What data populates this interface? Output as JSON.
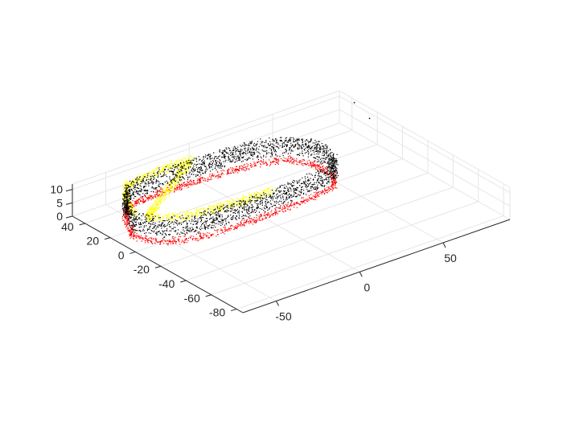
{
  "chart_data": {
    "type": "scatter3d",
    "title": "",
    "xlabel": "",
    "ylabel": "",
    "zlabel": "",
    "grid": true,
    "legend": "none",
    "xlim": [
      -70,
      90
    ],
    "ylim": [
      -85,
      50
    ],
    "zlim": [
      0,
      12
    ],
    "x_ticks": [
      {
        "value": -50,
        "label": "-50"
      },
      {
        "value": 0,
        "label": "0"
      },
      {
        "value": 50,
        "label": "50"
      }
    ],
    "y_ticks": [
      {
        "value": 40,
        "label": "40"
      },
      {
        "value": 20,
        "label": "20"
      },
      {
        "value": 0,
        "label": "0"
      },
      {
        "value": -20,
        "label": "-20"
      },
      {
        "value": -40,
        "label": "-40"
      },
      {
        "value": -60,
        "label": "-60"
      },
      {
        "value": -80,
        "label": "-80"
      }
    ],
    "z_ticks": [
      {
        "value": 0,
        "label": "0"
      },
      {
        "value": 5,
        "label": "5"
      },
      {
        "value": 10,
        "label": "10"
      }
    ],
    "series": [
      {
        "color": "#ff0000",
        "z_range": [
          0,
          2
        ],
        "description_loop_points": [
          [
            -62,
            12
          ],
          [
            -55,
            28
          ],
          [
            -45,
            40
          ],
          [
            -20,
            42
          ],
          [
            10,
            40
          ],
          [
            30,
            38
          ],
          [
            45,
            32
          ],
          [
            52,
            20
          ],
          [
            52,
            5
          ],
          [
            45,
            -5
          ],
          [
            28,
            -8
          ],
          [
            5,
            -10
          ],
          [
            -20,
            -10
          ],
          [
            -40,
            -8
          ],
          [
            -55,
            -2
          ]
        ]
      },
      {
        "color": "#ffff00",
        "z_range": [
          8,
          11
        ],
        "description_loop_points": [
          [
            -62,
            12
          ],
          [
            -55,
            28
          ],
          [
            -45,
            40
          ],
          [
            -20,
            42
          ],
          [
            -5,
            42
          ],
          [
            -60,
            5
          ],
          [
            -48,
            -4
          ],
          [
            -30,
            -8
          ],
          [
            -10,
            -10
          ],
          [
            5,
            -10
          ]
        ]
      },
      {
        "color": "#000000",
        "z_range": [
          3,
          10
        ],
        "description_loop_points": [
          [
            -62,
            12
          ],
          [
            -55,
            28
          ],
          [
            -45,
            40
          ],
          [
            -20,
            42
          ],
          [
            10,
            40
          ],
          [
            30,
            38
          ],
          [
            45,
            32
          ],
          [
            52,
            20
          ],
          [
            52,
            5
          ],
          [
            45,
            -5
          ],
          [
            28,
            -8
          ],
          [
            5,
            -10
          ],
          [
            -20,
            -10
          ],
          [
            -40,
            -8
          ],
          [
            -55,
            -2
          ]
        ]
      }
    ],
    "outliers": [
      {
        "x": 85,
        "y": 20,
        "z": 11
      },
      {
        "x": 88,
        "y": 36,
        "z": 12
      }
    ],
    "colors": {
      "axis": "#262626",
      "grid": "#e6e6e6"
    }
  }
}
